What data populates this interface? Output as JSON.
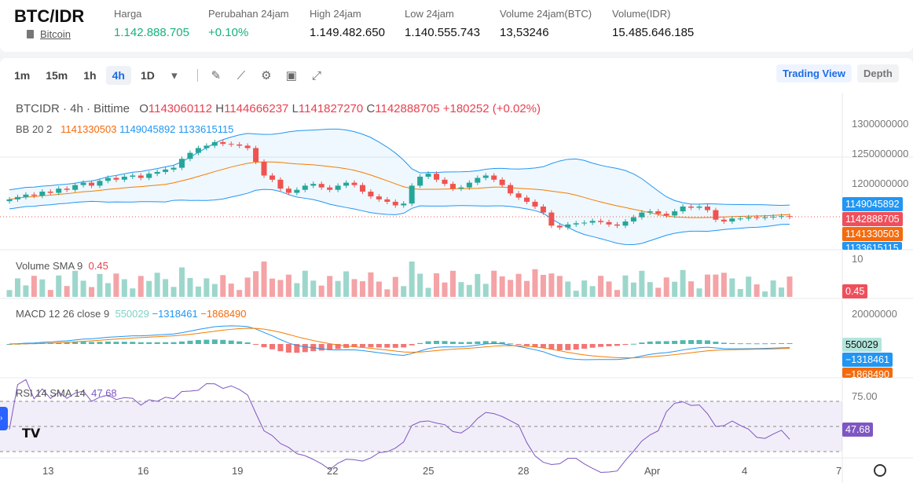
{
  "header": {
    "pair": "BTC/IDR",
    "coin_link": "Bitcoin",
    "stats": [
      {
        "label": "Harga",
        "value": "1.142.888.705",
        "green": true
      },
      {
        "label": "Perubahan 24jam",
        "value": "+0.10%",
        "green": true
      },
      {
        "label": "High 24jam",
        "value": "1.149.482.650"
      },
      {
        "label": "Low 24jam",
        "value": "1.140.555.743"
      },
      {
        "label": "Volume 24jam(BTC)",
        "value": "13,53246"
      },
      {
        "label": "Volume(IDR)",
        "value": "15.485.646.185"
      }
    ]
  },
  "toolbar": {
    "timeframes": [
      "1m",
      "15m",
      "1h",
      "4h",
      "1D"
    ],
    "active": "4h",
    "icons": [
      "draw-icon",
      "indicator-icon",
      "settings-icon",
      "save-icon",
      "fullscreen-icon"
    ],
    "trading_view": "Trading View",
    "depth": "Depth"
  },
  "chart": {
    "symbol": "BTCIDR · 4h · Bittime",
    "o_label": "O",
    "o": "1143060112",
    "h_label": "H",
    "h": "1144666237",
    "l_label": "L",
    "l": "1141827270",
    "c_label": "C",
    "c": "1142888705",
    "change": "+180252 (+0.02%)",
    "bb_label": "BB 20 2",
    "bb_mid": "1141330503",
    "bb_up": "1149045892",
    "bb_low": "1133615115",
    "price_axis": [
      "1300000000",
      "1250000000",
      "1200000000"
    ],
    "tags": {
      "upper": "1149045892",
      "last": "1142888705",
      "mid": "1141330503",
      "lower": "1133615115"
    },
    "closes": [
      1172,
      1176,
      1180,
      1178,
      1185,
      1183,
      1190,
      1188,
      1196,
      1200,
      1195,
      1203,
      1208,
      1205,
      1210,
      1212,
      1208,
      1215,
      1218,
      1222,
      1225,
      1240,
      1250,
      1258,
      1262,
      1268,
      1265,
      1264,
      1262,
      1258,
      1235,
      1212,
      1205,
      1190,
      1183,
      1188,
      1195,
      1198,
      1192,
      1188,
      1195,
      1200,
      1196,
      1185,
      1177,
      1172,
      1168,
      1162,
      1165,
      1195,
      1210,
      1215,
      1205,
      1198,
      1190,
      1192,
      1200,
      1208,
      1212,
      1205,
      1196,
      1182,
      1175,
      1168,
      1160,
      1150,
      1128,
      1125,
      1130,
      1132,
      1133,
      1136,
      1134,
      1130,
      1128,
      1135,
      1142,
      1150,
      1152,
      1148,
      1145,
      1152,
      1160,
      1158,
      1160,
      1154,
      1138,
      1135,
      1140,
      1140,
      1142,
      1141,
      1142,
      1143,
      1144,
      1143
    ]
  },
  "volume": {
    "label": "Volume SMA 9",
    "value": "0.45",
    "axis": "10",
    "tag": "0.45"
  },
  "macd": {
    "label": "MACD 12 26 close 9",
    "hist": "550029",
    "macd": "−1318461",
    "signal": "−1868490",
    "axis": "20000000"
  },
  "rsi": {
    "label": "RSI 14 SMA 14",
    "value": "47.68",
    "axis": "75.00",
    "tag": "47.68"
  },
  "x_axis": [
    "13",
    "16",
    "19",
    "22",
    "25",
    "28",
    "Apr",
    "4",
    "7"
  ],
  "colors": {
    "up": "#26a69a",
    "down": "#ef5350",
    "bb": "#2196f3",
    "mid": "#f57c00",
    "rsi": "#7e57c2"
  }
}
